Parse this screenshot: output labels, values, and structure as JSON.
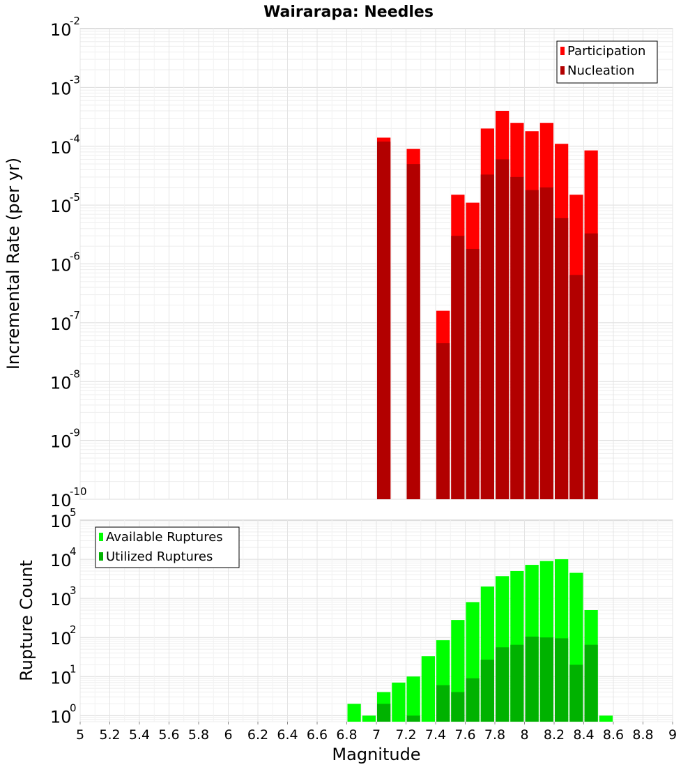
{
  "chart_data": [
    {
      "type": "bar",
      "title": "Wairarapa: Needles",
      "xlabel": "",
      "ylabel": "Incremental Rate (per yr)",
      "yscale": "log",
      "ylim": [
        1e-10,
        0.01
      ],
      "xlim": [
        5,
        9
      ],
      "y_tick_exponents": [
        -10,
        -9,
        -8,
        -7,
        -6,
        -5,
        -4,
        -3,
        -2
      ],
      "legend": "top-right",
      "grid": true,
      "bar_width": 0.1,
      "series": [
        {
          "name": "Participation",
          "color": "#ff0000",
          "x": [
            7.05,
            7.25,
            7.45,
            7.55,
            7.65,
            7.75,
            7.85,
            7.95,
            8.05,
            8.15,
            8.25,
            8.35,
            8.45
          ],
          "values": [
            0.00014,
            9e-05,
            1.6e-07,
            1.5e-05,
            1.1e-05,
            0.0002,
            0.0004,
            0.00025,
            0.00018,
            0.00025,
            0.00011,
            1.5e-05,
            8.5e-05
          ]
        },
        {
          "name": "Nucleation",
          "color": "#b20000",
          "x": [
            7.05,
            7.25,
            7.45,
            7.55,
            7.65,
            7.75,
            7.85,
            7.95,
            8.05,
            8.15,
            8.25,
            8.35,
            8.45
          ],
          "values": [
            0.00012,
            5e-05,
            4.5e-08,
            3e-06,
            1.8e-06,
            3.3e-05,
            6e-05,
            3e-05,
            1.8e-05,
            2e-05,
            6e-06,
            6.5e-07,
            3.3e-06
          ]
        }
      ]
    },
    {
      "type": "bar",
      "title": "",
      "xlabel": "Magnitude",
      "ylabel": "Rupture Count",
      "yscale": "log",
      "ylim": [
        0.7,
        100000.0
      ],
      "xlim": [
        5,
        9
      ],
      "x_ticks": [
        "5",
        "5.2",
        "5.4",
        "5.6",
        "5.8",
        "6",
        "6.2",
        "6.4",
        "6.6",
        "6.8",
        "7",
        "7.2",
        "7.4",
        "7.6",
        "7.8",
        "8",
        "8.2",
        "8.4",
        "8.6",
        "8.8",
        "9"
      ],
      "y_tick_exponents": [
        0,
        1,
        2,
        3,
        4,
        5
      ],
      "legend": "top-left",
      "grid": true,
      "bar_width": 0.1,
      "series": [
        {
          "name": "Available Ruptures",
          "color": "#00ff00",
          "x": [
            6.85,
            6.95,
            7.05,
            7.15,
            7.25,
            7.35,
            7.45,
            7.55,
            7.65,
            7.75,
            7.85,
            7.95,
            8.05,
            8.15,
            8.25,
            8.35,
            8.45,
            8.55
          ],
          "values": [
            2,
            1,
            4,
            7,
            10,
            33,
            85,
            280,
            800,
            2000,
            3700,
            5000,
            7200,
            9000,
            10000,
            4500,
            500,
            1
          ]
        },
        {
          "name": "Utilized Ruptures",
          "color": "#00b200",
          "x": [
            6.85,
            6.95,
            7.05,
            7.15,
            7.25,
            7.35,
            7.45,
            7.55,
            7.65,
            7.75,
            7.85,
            7.95,
            8.05,
            8.15,
            8.25,
            8.35,
            8.45,
            8.55
          ],
          "values": [
            0,
            0,
            2,
            0,
            1,
            0,
            6,
            4,
            9,
            27,
            56,
            65,
            105,
            100,
            95,
            20,
            65,
            0
          ]
        }
      ]
    }
  ]
}
